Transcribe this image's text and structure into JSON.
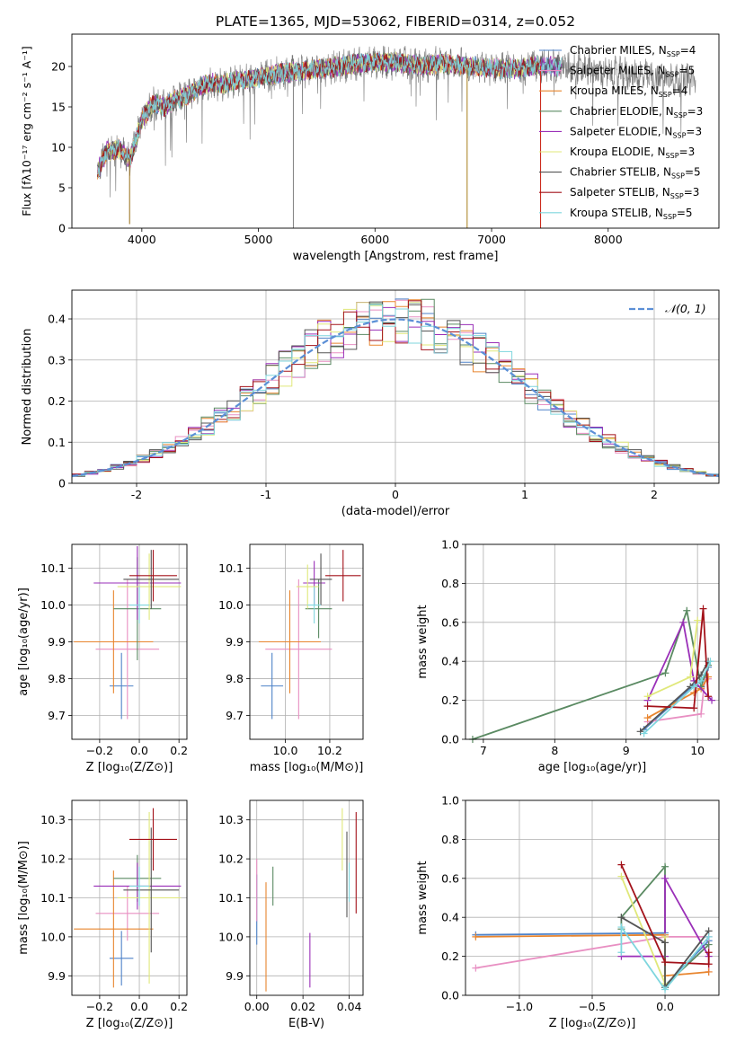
{
  "figure": {
    "title": "PLATE=1365, MJD=53062, FIBERID=0314, z=0.052"
  },
  "models": [
    {
      "name": "Chabrier MILES",
      "nssp": "4",
      "color": "#4e82c8"
    },
    {
      "name": "Salpeter MILES",
      "nssp": "5",
      "color": "#e88fc2"
    },
    {
      "name": "Kroupa MILES",
      "nssp": "4",
      "color": "#e8852e"
    },
    {
      "name": "Chabrier ELODIE",
      "nssp": "3",
      "color": "#5a8a62"
    },
    {
      "name": "Salpeter ELODIE",
      "nssp": "3",
      "color": "#9a2fb8"
    },
    {
      "name": "Kroupa ELODIE",
      "nssp": "3",
      "color": "#e0e87a"
    },
    {
      "name": "Chabrier STELIB",
      "nssp": "5",
      "color": "#555555"
    },
    {
      "name": "Salpeter STELIB",
      "nssp": "3",
      "color": "#a3121a"
    },
    {
      "name": "Kroupa STELIB",
      "nssp": "5",
      "color": "#7fd6de"
    }
  ],
  "chart_data": [
    {
      "id": "spectrum",
      "type": "line",
      "xlabel": "wavelength [Angstrom, rest frame]",
      "ylabel": "Flux [fλ10⁻¹⁷ erg cm⁻² s⁻¹ A⁻¹]",
      "xlim": [
        3400,
        8950
      ],
      "ylim": [
        0,
        24
      ],
      "xticks": [
        4000,
        5000,
        6000,
        7000,
        8000
      ],
      "yticks": [
        0,
        5,
        10,
        15,
        20
      ],
      "continuum_x": [
        3620,
        3700,
        3800,
        3900,
        4000,
        4100,
        4200,
        4300,
        4400,
        4500,
        4600,
        4700,
        4800,
        4900,
        5000,
        5200,
        5400,
        5600,
        5800,
        6000,
        6200,
        6400,
        6600,
        6800,
        7000,
        7200,
        7400,
        7600,
        7800,
        8000,
        8200,
        8400,
        8600,
        8750
      ],
      "continuum_y": [
        7.0,
        9.5,
        9.8,
        8.5,
        13.5,
        15.5,
        15.0,
        16.0,
        16.5,
        17.5,
        18.0,
        17.8,
        18.2,
        18.4,
        18.6,
        19.2,
        19.5,
        19.8,
        20.3,
        20.6,
        20.5,
        20.1,
        20.4,
        20.0,
        19.8,
        19.7,
        20.1,
        20.0,
        19.6,
        19.1,
        19.0,
        18.6,
        18.3,
        18.5
      ],
      "dropouts": [
        {
          "x": 3895,
          "y": 0.5
        },
        {
          "x": 5300,
          "y": 0
        },
        {
          "x": 6790,
          "y": 0
        },
        {
          "x": 7420,
          "y": 0
        }
      ],
      "legend": "upper right"
    },
    {
      "id": "residuals",
      "type": "bar",
      "xlabel": "(data-model)/error",
      "ylabel": "Normed distribution",
      "xlim": [
        -2.5,
        2.5
      ],
      "ylim": [
        0,
        0.47
      ],
      "xticks": [
        -2,
        -1,
        0,
        1,
        2
      ],
      "yticks": [
        0.0,
        0.1,
        0.2,
        0.3,
        0.4
      ],
      "bin_width": 0.1,
      "gaussian_label": "𝒩(0, 1)",
      "gaussian_color": "#5b8fd6",
      "legend": "upper right"
    },
    {
      "id": "age-vs-Z",
      "type": "scatter",
      "xlabel": "Z [log₁₀(Z/Z⊙)]",
      "ylabel": "age  [log₁₀(age/yr)]",
      "xlim": [
        -0.34,
        0.24
      ],
      "ylim": [
        9.635,
        10.165
      ],
      "xticks": [
        -0.2,
        0.0,
        0.2
      ],
      "xtick_labels": [
        "−0.2",
        "0.0",
        "0.2"
      ],
      "yticks": [
        9.7,
        9.8,
        9.9,
        10.0,
        10.1
      ],
      "ytick_labels": [
        "9.7",
        "9.8",
        "9.9",
        "10.0",
        "10.1"
      ],
      "points": [
        {
          "x": -0.09,
          "y": 9.78,
          "xerr": 0.06,
          "yerr": 0.09
        },
        {
          "x": -0.06,
          "y": 9.88,
          "xerr": 0.16,
          "yerr": 0.19
        },
        {
          "x": -0.13,
          "y": 9.9,
          "xerr": 0.2,
          "yerr": 0.14
        },
        {
          "x": -0.01,
          "y": 9.99,
          "xerr": 0.12,
          "yerr": 0.14
        },
        {
          "x": -0.01,
          "y": 10.06,
          "xerr": 0.22,
          "yerr": 0.1
        },
        {
          "x": 0.05,
          "y": 10.05,
          "xerr": 0.16,
          "yerr": 0.09
        },
        {
          "x": 0.06,
          "y": 10.07,
          "xerr": 0.14,
          "yerr": 0.08
        },
        {
          "x": 0.07,
          "y": 10.08,
          "xerr": 0.12,
          "yerr": 0.07
        },
        {
          "x": 0.0,
          "y": 10.0,
          "xerr": 0.05,
          "yerr": 0.05
        }
      ]
    },
    {
      "id": "age-vs-mass",
      "type": "scatter",
      "xlabel": "mass [log₁₀(M/M⊙)]",
      "ylabel": "",
      "xlim": [
        9.84,
        10.35
      ],
      "ylim": [
        9.635,
        10.165
      ],
      "xticks": [
        10.0,
        10.2
      ],
      "xtick_labels": [
        "10.0",
        "10.2"
      ],
      "yticks": [
        9.7,
        9.8,
        9.9,
        10.0,
        10.1
      ],
      "ytick_labels": [
        "9.7",
        "9.8",
        "9.9",
        "10.0",
        "10.1"
      ],
      "points": [
        {
          "x": 9.94,
          "y": 9.78,
          "xerr": 0.05,
          "yerr": 0.09
        },
        {
          "x": 10.06,
          "y": 9.88,
          "xerr": 0.15,
          "yerr": 0.19
        },
        {
          "x": 10.02,
          "y": 9.9,
          "xerr": 0.14,
          "yerr": 0.14
        },
        {
          "x": 10.15,
          "y": 9.99,
          "xerr": 0.06,
          "yerr": 0.08
        },
        {
          "x": 10.13,
          "y": 10.06,
          "xerr": 0.05,
          "yerr": 0.06
        },
        {
          "x": 10.1,
          "y": 10.05,
          "xerr": 0.05,
          "yerr": 0.06
        },
        {
          "x": 10.16,
          "y": 10.07,
          "xerr": 0.05,
          "yerr": 0.07
        },
        {
          "x": 10.26,
          "y": 10.08,
          "xerr": 0.08,
          "yerr": 0.07
        },
        {
          "x": 10.13,
          "y": 10.0,
          "xerr": 0.03,
          "yerr": 0.05
        }
      ]
    },
    {
      "id": "mass-weight-vs-age",
      "type": "line",
      "xlabel": "age  [log₁₀(age/yr)]",
      "ylabel": "mass weight",
      "xlim": [
        6.75,
        10.3
      ],
      "ylim": [
        0,
        1
      ],
      "xticks": [
        7,
        8,
        9,
        10
      ],
      "xtick_labels": [
        "7",
        "8",
        "9",
        "10"
      ],
      "yticks": [
        0.0,
        0.2,
        0.4,
        0.6,
        0.8,
        1.0
      ],
      "ytick_labels": [
        "0.0",
        "0.2",
        "0.4",
        "0.6",
        "0.8",
        "1.0"
      ],
      "series": [
        {
          "x": [
            9.25,
            9.95,
            10.1,
            10.15
          ],
          "y": [
            0.05,
            0.28,
            0.3,
            0.37
          ]
        },
        {
          "x": [
            9.3,
            10.05,
            10.1,
            10.15
          ],
          "y": [
            0.09,
            0.13,
            0.3,
            0.31
          ]
        },
        {
          "x": [
            9.3,
            9.95,
            10.05,
            10.15
          ],
          "y": [
            0.11,
            0.24,
            0.26,
            0.32
          ]
        },
        {
          "x": [
            6.85,
            9.55,
            9.85,
            10.05,
            10.15
          ],
          "y": [
            0.0,
            0.34,
            0.66,
            0.27,
            0.38
          ]
        },
        {
          "x": [
            9.3,
            9.8,
            9.95,
            10.2
          ],
          "y": [
            0.2,
            0.6,
            0.3,
            0.2
          ]
        },
        {
          "x": [
            9.3,
            9.9,
            10.0
          ],
          "y": [
            0.22,
            0.32,
            0.61
          ]
        },
        {
          "x": [
            9.2,
            9.9,
            10.05,
            10.15
          ],
          "y": [
            0.04,
            0.27,
            0.33,
            0.4
          ]
        },
        {
          "x": [
            9.3,
            9.95,
            10.08,
            10.15
          ],
          "y": [
            0.17,
            0.16,
            0.67,
            0.22
          ]
        },
        {
          "x": [
            9.25,
            9.95,
            10.05,
            10.18
          ],
          "y": [
            0.03,
            0.27,
            0.3,
            0.4
          ]
        }
      ]
    },
    {
      "id": "mass-vs-Z",
      "type": "scatter",
      "xlabel": "Z [log₁₀(Z/Z⊙)]",
      "ylabel": "mass [log₁₀(M/M⊙)]",
      "xlim": [
        -0.34,
        0.24
      ],
      "ylim": [
        9.85,
        10.35
      ],
      "xticks": [
        -0.2,
        0.0,
        0.2
      ],
      "xtick_labels": [
        "−0.2",
        "0.0",
        "0.2"
      ],
      "yticks": [
        9.9,
        10.0,
        10.1,
        10.2,
        10.3
      ],
      "ytick_labels": [
        "9.9",
        "10.0",
        "10.1",
        "10.2",
        "10.3"
      ],
      "points": [
        {
          "x": -0.09,
          "y": 9.945,
          "xerr": 0.06,
          "yerr": 0.07
        },
        {
          "x": -0.06,
          "y": 10.06,
          "xerr": 0.16,
          "yerr": 0.07
        },
        {
          "x": -0.13,
          "y": 10.02,
          "xerr": 0.2,
          "yerr": 0.15
        },
        {
          "x": -0.01,
          "y": 10.15,
          "xerr": 0.12,
          "yerr": 0.06
        },
        {
          "x": -0.01,
          "y": 10.13,
          "xerr": 0.22,
          "yerr": 0.06
        },
        {
          "x": 0.05,
          "y": 10.1,
          "xerr": 0.16,
          "yerr": 0.22
        },
        {
          "x": 0.06,
          "y": 10.12,
          "xerr": 0.14,
          "yerr": 0.16
        },
        {
          "x": 0.07,
          "y": 10.25,
          "xerr": 0.12,
          "yerr": 0.08
        },
        {
          "x": 0.0,
          "y": 10.13,
          "xerr": 0.05,
          "yerr": 0.05
        }
      ]
    },
    {
      "id": "mass-vs-EBV",
      "type": "scatter",
      "xlabel": "E(B-V)",
      "ylabel": "",
      "xlim": [
        -0.003,
        0.046
      ],
      "ylim": [
        9.85,
        10.35
      ],
      "xticks": [
        0.0,
        0.02,
        0.04
      ],
      "xtick_labels": [
        "0.00",
        "0.02",
        "0.04"
      ],
      "yticks": [
        9.9,
        10.0,
        10.1,
        10.2,
        10.3
      ],
      "ytick_labels": [
        "9.9",
        "10.0",
        "10.1",
        "10.2",
        "10.3"
      ],
      "points": [
        {
          "x": 0.0,
          "y": 10.07,
          "xerr": 0,
          "yerr": 0.09
        },
        {
          "x": 0.0,
          "y": 10.12,
          "xerr": 0,
          "yerr": 0.08
        },
        {
          "x": 0.004,
          "y": 10.0,
          "xerr": 0,
          "yerr": 0.14
        },
        {
          "x": 0.007,
          "y": 10.13,
          "xerr": 0,
          "yerr": 0.05
        },
        {
          "x": 0.023,
          "y": 9.94,
          "xerr": 0,
          "yerr": 0.07
        },
        {
          "x": 0.037,
          "y": 10.25,
          "xerr": 0,
          "yerr": 0.08
        },
        {
          "x": 0.039,
          "y": 10.16,
          "xerr": 0,
          "yerr": 0.11
        },
        {
          "x": 0.043,
          "y": 10.19,
          "xerr": 0,
          "yerr": 0.13
        },
        {
          "x": 0.04,
          "y": 10.14,
          "xerr": 0,
          "yerr": 0.05
        }
      ]
    },
    {
      "id": "mass-weight-vs-Z",
      "type": "line",
      "xlabel": "Z [log₁₀(Z/Z⊙)]",
      "ylabel": "mass weight",
      "xlim": [
        -1.37,
        0.37
      ],
      "ylim": [
        0,
        1
      ],
      "xticks": [
        -1.0,
        -0.5,
        0.0
      ],
      "xtick_labels": [
        "−1.0",
        "−0.5",
        "0.0"
      ],
      "yticks": [
        0.0,
        0.2,
        0.4,
        0.6,
        0.8,
        1.0
      ],
      "ytick_labels": [
        "0.0",
        "0.2",
        "0.4",
        "0.6",
        "0.8",
        "1.0"
      ],
      "series": [
        {
          "x": [
            -1.3,
            0.0,
            0.0,
            0.3
          ],
          "y": [
            0.31,
            0.32,
            0.05,
            0.28
          ]
        },
        {
          "x": [
            -1.3,
            0.0,
            0.3,
            0.3
          ],
          "y": [
            0.14,
            0.3,
            0.3,
            0.12
          ]
        },
        {
          "x": [
            -1.3,
            0.0,
            0.0,
            0.3
          ],
          "y": [
            0.3,
            0.31,
            0.1,
            0.12
          ]
        },
        {
          "x": [
            -0.3,
            -0.3,
            0.0,
            0.0,
            0.3
          ],
          "y": [
            0.34,
            0.4,
            0.66,
            0.05,
            0.26
          ]
        },
        {
          "x": [
            -0.3,
            0.0,
            0.0,
            0.3
          ],
          "y": [
            0.2,
            0.2,
            0.6,
            0.2
          ]
        },
        {
          "x": [
            -0.3,
            0.0,
            0.0
          ],
          "y": [
            0.61,
            0.06,
            0.3
          ]
        },
        {
          "x": [
            -0.3,
            0.0,
            0.0,
            0.3
          ],
          "y": [
            0.4,
            0.27,
            0.04,
            0.33
          ]
        },
        {
          "x": [
            -0.3,
            0.0,
            0.3,
            0.3
          ],
          "y": [
            0.67,
            0.17,
            0.16,
            0.22
          ]
        },
        {
          "x": [
            -0.3,
            -0.3,
            0.0,
            0.3
          ],
          "y": [
            0.22,
            0.35,
            0.03,
            0.3
          ]
        }
      ]
    }
  ]
}
